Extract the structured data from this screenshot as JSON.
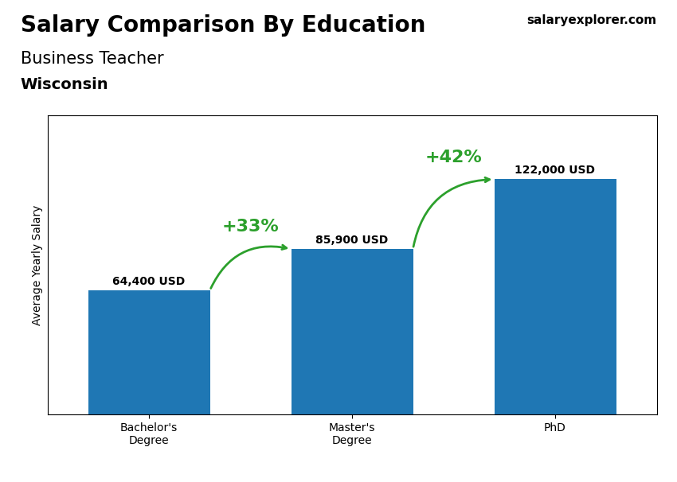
{
  "chart_data": {
    "type": "bar",
    "title": "Salary Comparison By Education",
    "subtitle": "Business Teacher",
    "categories": [
      "Bachelor's\nDegree",
      "Master's\nDegree",
      "PhD"
    ],
    "values": [
      64400,
      85900,
      122000
    ],
    "value_labels": [
      "64,400 USD",
      "85,900 USD",
      "122,000 USD"
    ],
    "data_labels": true,
    "ylabel": "Average Yearly Salary",
    "ylim": [
      0,
      155000
    ],
    "tick_labels": "x",
    "annotations": [
      "+33%",
      "+42%",
      "Wisconsin",
      "salaryexplorer.com"
    ]
  }
}
